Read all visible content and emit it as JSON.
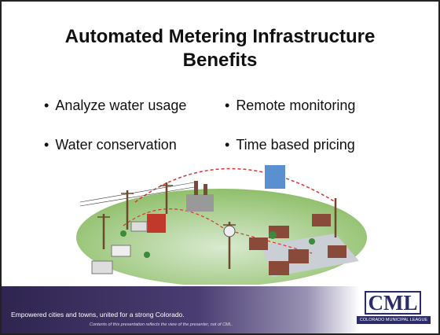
{
  "slide": {
    "title": "Automated Metering Infrastructure Benefits",
    "bullets": [
      "Analyze water usage",
      "Remote monitoring",
      "Water conservation",
      "Time based pricing"
    ],
    "footer": {
      "tagline": "Empowered cities and towns, united for a strong Colorado.",
      "disclaimer": "Contents of this presentation reflects the view of the presenter, not of CML."
    },
    "logo": {
      "name": "CML",
      "subtitle": "COLORADO MUNICIPAL LEAGUE"
    }
  }
}
